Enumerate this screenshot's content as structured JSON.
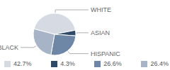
{
  "chart_data": {
    "type": "pie",
    "categories": [
      "WHITE",
      "ASIAN",
      "HISPANIC",
      "BLACK"
    ],
    "values": [
      42.7,
      4.3,
      26.6,
      26.4
    ],
    "value_labels": [
      "42.7%",
      "4.3%",
      "26.6%",
      "26.4%"
    ],
    "colors": [
      "#d5dae3",
      "#2e4a6b",
      "#6f87a6",
      "#a7b4c7"
    ],
    "legend": "bottom"
  }
}
